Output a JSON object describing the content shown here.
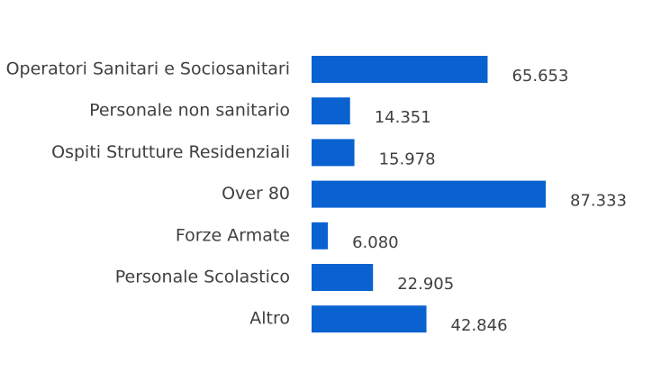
{
  "chart_data": {
    "type": "bar",
    "orientation": "horizontal",
    "categories": [
      "Operatori Sanitari e Sociosanitari",
      "Personale non sanitario",
      "Ospiti Strutture Residenziali",
      "Over 80",
      "Forze Armate",
      "Personale Scolastico",
      "Altro"
    ],
    "values": [
      65653,
      14351,
      15978,
      87333,
      6080,
      22905,
      42846
    ],
    "value_labels": [
      "65.653",
      "14.351",
      "15.978",
      "87.333",
      "6.080",
      "22.905",
      "42.846"
    ],
    "bar_color": "#0A62D1",
    "text_color": "#404040",
    "grid": false,
    "legend": "none",
    "xlim": [
      0,
      87333
    ]
  }
}
